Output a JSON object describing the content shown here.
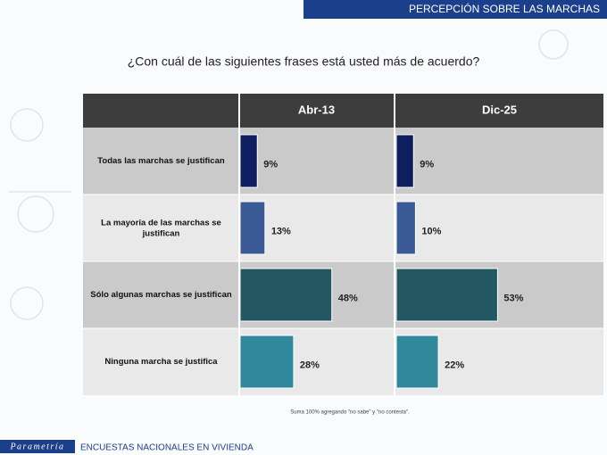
{
  "header": "PERCEPCIÓN SOBRE LAS MARCHAS",
  "chart_data": {
    "type": "bar",
    "orientation": "horizontal",
    "title": "¿Con cuál de las siguientes frases está usted más de acuerdo?",
    "categories": [
      "Todas las marchas se justifican",
      "La mayoría de las marchas se justifican",
      "Sólo algunas marchas se justifican",
      "Ninguna marcha se justifica"
    ],
    "colors": [
      "#0e1e5e",
      "#3b5b97",
      "#235863",
      "#2f889c"
    ],
    "series": [
      {
        "name": "Abr-13",
        "values": [
          9,
          13,
          48,
          28
        ],
        "value_labels": [
          "9%",
          "13%",
          "48%",
          "28%"
        ]
      },
      {
        "name": "Dic-25",
        "values": [
          9,
          10,
          53,
          22
        ],
        "value_labels": [
          "9%",
          "10%",
          "53%",
          "22%"
        ]
      }
    ],
    "note": "Suma 100% agregando \"no sabe\" y \"no contesta\"."
  },
  "footer": {
    "logo": "Parametría",
    "text": "ENCUESTAS NACIONALES EN VIVIENDA"
  }
}
